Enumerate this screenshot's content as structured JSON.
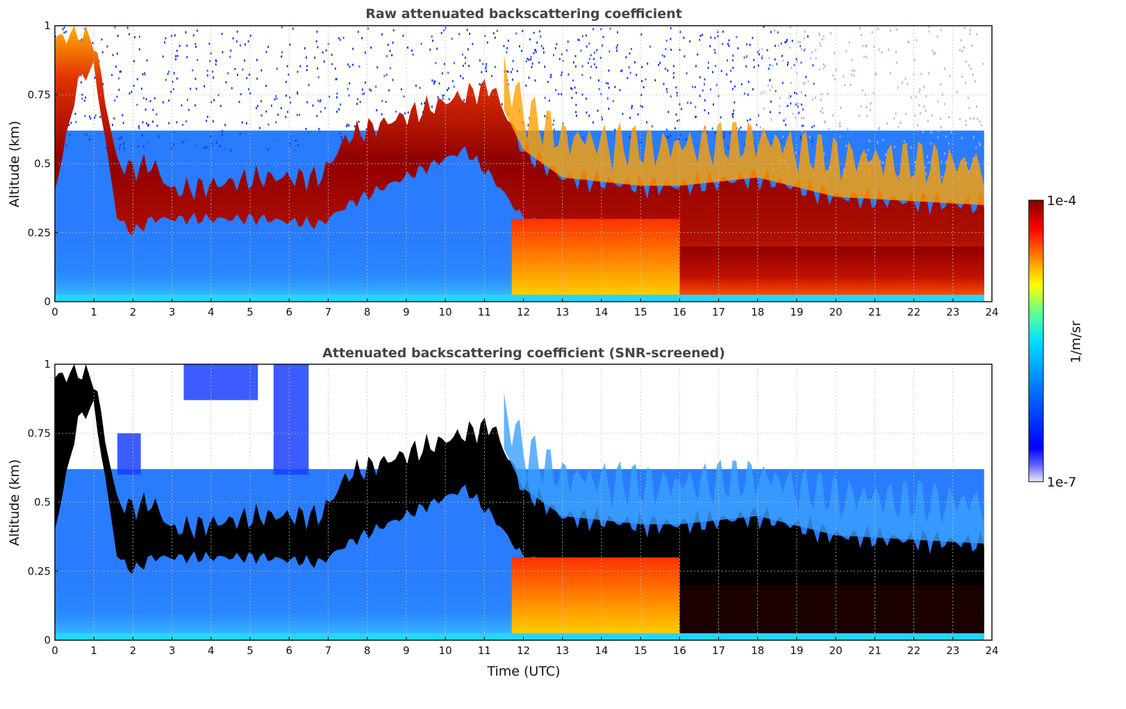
{
  "chart_data": [
    {
      "type": "heatmap",
      "title": "Raw attenuated backscattering coefficient",
      "xlabel": "",
      "ylabel": "Altitude (km)",
      "xlim": [
        0,
        24
      ],
      "ylim": [
        0,
        1
      ],
      "x_ticks": [
        "0",
        "1",
        "2",
        "3",
        "4",
        "5",
        "6",
        "7",
        "8",
        "9",
        "10",
        "11",
        "12",
        "13",
        "14",
        "15",
        "16",
        "17",
        "18",
        "19",
        "20",
        "21",
        "22",
        "23",
        "24"
      ],
      "y_ticks": [
        "0",
        "0.25",
        "0.5",
        "0.75",
        "1"
      ],
      "grid": true,
      "colormap": "jet",
      "color_scale": "log",
      "color_range": [
        "1e-7",
        "1e-4"
      ],
      "data_extent_x": [
        0,
        23.8
      ],
      "cloud_layer_top_km": [
        [
          0,
          0.95
        ],
        [
          0.6,
          0.98
        ],
        [
          1.0,
          0.95
        ],
        [
          1.6,
          0.5
        ],
        [
          2.0,
          0.48
        ],
        [
          2.5,
          0.5
        ],
        [
          3.0,
          0.4
        ],
        [
          5.3,
          0.45
        ],
        [
          6.8,
          0.45
        ],
        [
          7.5,
          0.6
        ],
        [
          8.5,
          0.65
        ],
        [
          10.5,
          0.75
        ],
        [
          11.2,
          0.78
        ],
        [
          12.0,
          0.55
        ],
        [
          13.0,
          0.45
        ],
        [
          15.0,
          0.42
        ],
        [
          16.0,
          0.42
        ],
        [
          18.0,
          0.45
        ],
        [
          20.0,
          0.38
        ],
        [
          23.8,
          0.35
        ]
      ],
      "cloud_layer_base_km": [
        [
          0,
          0.4
        ],
        [
          0.6,
          0.8
        ],
        [
          1.0,
          0.85
        ],
        [
          1.6,
          0.3
        ],
        [
          2.0,
          0.25
        ],
        [
          2.5,
          0.3
        ],
        [
          3.0,
          0.3
        ],
        [
          5.3,
          0.3
        ],
        [
          6.8,
          0.28
        ],
        [
          7.5,
          0.35
        ],
        [
          8.5,
          0.42
        ],
        [
          10.5,
          0.55
        ],
        [
          11.2,
          0.45
        ],
        [
          12.0,
          0.3
        ],
        [
          13.0,
          0.25
        ],
        [
          15.0,
          0.2
        ],
        [
          16.0,
          0.15
        ],
        [
          18.0,
          0.1
        ],
        [
          20.0,
          0.05
        ],
        [
          23.8,
          0.05
        ]
      ]
    },
    {
      "type": "heatmap",
      "title": "Attenuated backscattering coefficient (SNR-screened)",
      "xlabel": "Time (UTC)",
      "ylabel": "Altitude (km)",
      "xlim": [
        0,
        24
      ],
      "ylim": [
        0,
        1
      ],
      "x_ticks": [
        "0",
        "1",
        "2",
        "3",
        "4",
        "5",
        "6",
        "7",
        "8",
        "9",
        "10",
        "11",
        "12",
        "13",
        "14",
        "15",
        "16",
        "17",
        "18",
        "19",
        "20",
        "21",
        "22",
        "23",
        "24"
      ],
      "y_ticks": [
        "0",
        "0.25",
        "0.5",
        "0.75",
        "1"
      ],
      "grid": true,
      "colormap": "jet",
      "color_scale": "log",
      "color_range": [
        "1e-7",
        "1e-4"
      ],
      "data_extent_x": [
        0,
        23.8
      ],
      "saturated_color": "black"
    }
  ],
  "colorbar": {
    "label": "1/m/sr",
    "max_label": "1e-4",
    "min_label": "1e-7"
  },
  "colors": {
    "jet": [
      "#00007f",
      "#0000ff",
      "#007fff",
      "#00ffff",
      "#7fff7f",
      "#ffff00",
      "#ff7f00",
      "#ff0000",
      "#7f0000"
    ],
    "saturated": "#000000",
    "grid": "#c0c0c0",
    "title": "#444444"
  }
}
